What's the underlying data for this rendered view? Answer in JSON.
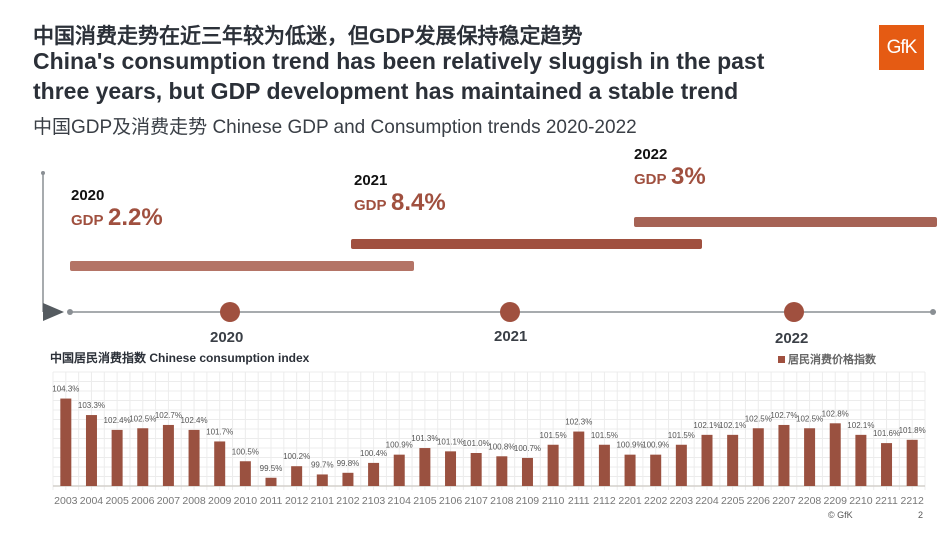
{
  "header": {
    "title_cn": "中国消费走势在近三年较为低迷，但GDP发展保持稳定趋势",
    "title_en_line1": "China's consumption trend has been relatively sluggish in the past",
    "title_en_line2": "three years, but GDP development has maintained a stable trend",
    "subtitle": "中国GDP及消费走势 Chinese GDP and Consumption trends 2020-2022",
    "logo": "GfK",
    "brand_color": "#e55b13"
  },
  "timeline": {
    "entries": [
      {
        "year": "2020",
        "gdp_label": "GDP",
        "gdp_value": "2.2%"
      },
      {
        "year": "2021",
        "gdp_label": "GDP",
        "gdp_value": "8.4%"
      },
      {
        "year": "2022",
        "gdp_label": "GDP",
        "gdp_value": "3%"
      }
    ],
    "axis_years": [
      "2020",
      "2021",
      "2022"
    ],
    "accent_color": "#a0503f"
  },
  "chart_data": {
    "type": "bar",
    "title": "中国居民消费指数 Chinese consumption index",
    "legend": "居民消费价格指数",
    "legend_position": "top-right",
    "categories": [
      "2003",
      "2004",
      "2005",
      "2006",
      "2007",
      "2008",
      "2009",
      "2010",
      "2011",
      "2012",
      "2101",
      "2102",
      "2103",
      "2104",
      "2105",
      "2106",
      "2107",
      "2108",
      "2109",
      "2110",
      "2111",
      "2112",
      "2201",
      "2202",
      "2203",
      "2204",
      "2205",
      "2206",
      "2207",
      "2208",
      "2209",
      "2210",
      "2211",
      "2212"
    ],
    "values": [
      104.3,
      103.3,
      102.4,
      102.5,
      102.7,
      102.4,
      101.7,
      100.5,
      99.5,
      100.2,
      99.7,
      99.8,
      100.4,
      100.9,
      101.3,
      101.1,
      101.0,
      100.8,
      100.7,
      101.5,
      102.3,
      101.5,
      100.9,
      100.9,
      101.5,
      102.1,
      102.1,
      102.5,
      102.7,
      102.5,
      102.8,
      102.1,
      101.6,
      101.8
    ],
    "labels": [
      "104.3%",
      "103.3%",
      "102.4%",
      "102.5%",
      "102.7%",
      "102.4%",
      "101.7%",
      "100.5%",
      "99.5%",
      "100.2%",
      "99.7%",
      "99.8%",
      "100.4%",
      "100.9%",
      "101.3%",
      "101.1%",
      "101.0%",
      "100.8%",
      "100.7%",
      "101.5%",
      "102.3%",
      "101.5%",
      "100.9%",
      "100.9%",
      "101.5%",
      "102.1%",
      "102.1%",
      "102.5%",
      "102.7%",
      "102.5%",
      "102.8%",
      "102.1%",
      "101.6%",
      "101.8%"
    ],
    "ylim": [
      99,
      105
    ],
    "grid": true,
    "bar_color": "#9a5140"
  },
  "footer": {
    "copyright": "© GfK",
    "page": "2"
  }
}
